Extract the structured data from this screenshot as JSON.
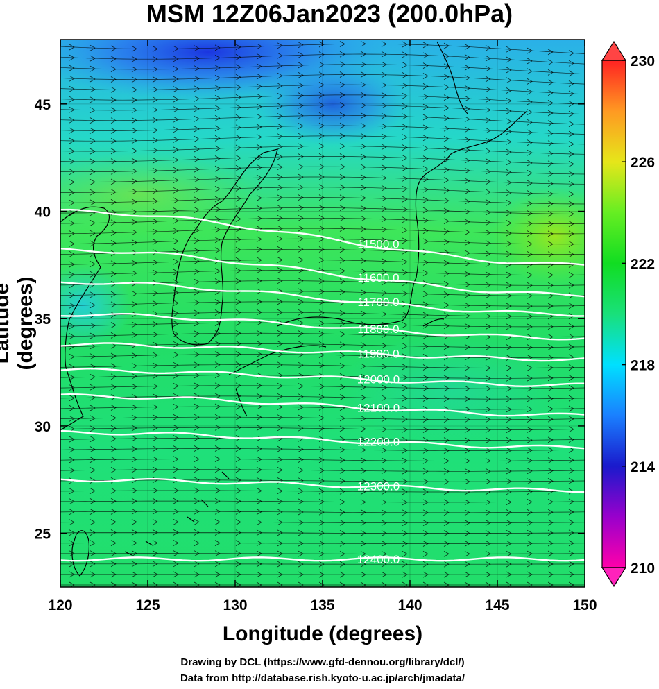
{
  "title": "MSM 12Z06Jan2023 (200.0hPa)",
  "xlabel": "Longitude (degrees)",
  "ylabel": "Latitude  (degrees)",
  "credits": [
    "Drawing by DCL (https://www.gfd-dennou.org/library/dcl/)",
    "Data from http://database.rish.kyoto-u.ac.jp/arch/jmadata/"
  ],
  "chart_data": {
    "type": "heatmap",
    "title": "MSM 12Z06Jan2023 (200.0hPa)",
    "xlabel": "Longitude (degrees)",
    "ylabel": "Latitude  (degrees)",
    "xlim": [
      120,
      150
    ],
    "ylim": [
      22.5,
      48
    ],
    "x_ticks": [
      120,
      125,
      130,
      135,
      140,
      145,
      150
    ],
    "y_ticks": [
      25,
      30,
      35,
      40,
      45
    ],
    "colorbar": {
      "range": [
        210,
        230
      ],
      "ticks": [
        210,
        214,
        218,
        222,
        226,
        230
      ],
      "extend": "both"
    },
    "contours": [
      {
        "label": "11500.0",
        "lat_at_120": 40.0,
        "lat_at_150": 37.5
      },
      {
        "label": "11600.0",
        "lat_at_120": 38.2,
        "lat_at_150": 36.1
      },
      {
        "label": "11700.0",
        "lat_at_120": 36.7,
        "lat_at_150": 35.2
      },
      {
        "label": "11800.0",
        "lat_at_120": 35.2,
        "lat_at_150": 34.1
      },
      {
        "label": "11900.0",
        "lat_at_120": 33.8,
        "lat_at_150": 33.1
      },
      {
        "label": "12000.0",
        "lat_at_120": 32.6,
        "lat_at_150": 31.9
      },
      {
        "label": "12100.0",
        "lat_at_120": 31.4,
        "lat_at_150": 30.5
      },
      {
        "label": "12200.0",
        "lat_at_120": 29.7,
        "lat_at_150": 29.0
      },
      {
        "label": "12300.0",
        "lat_at_120": 27.5,
        "lat_at_150": 27.0
      },
      {
        "label": "12400.0",
        "lat_at_120": 23.8,
        "lat_at_150": 23.8
      }
    ],
    "wind": "westerly streamline vectors across domain"
  },
  "colors": {
    "colormap": [
      "#ff00aa",
      "#9900cc",
      "#1a1acc",
      "#1a80ff",
      "#00e0ff",
      "#19e07a",
      "#11dd22",
      "#66ee22",
      "#e6e61a",
      "#ff9922",
      "#ff2222"
    ]
  }
}
